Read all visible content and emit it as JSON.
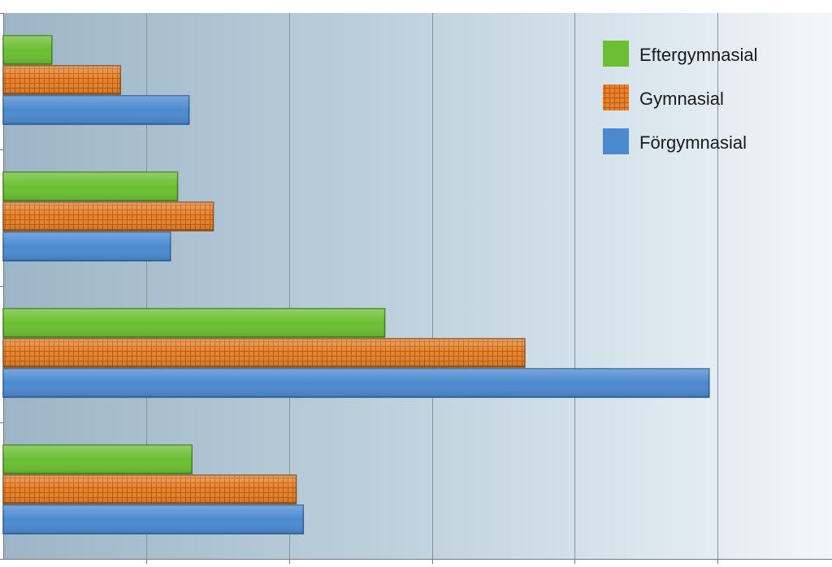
{
  "chart_data": {
    "type": "bar",
    "orientation": "horizontal",
    "title": "",
    "xlabel": "",
    "ylabel": "",
    "categories": [
      "",
      "",
      "",
      ""
    ],
    "series": [
      {
        "name": "Eftergymnasial",
        "color": "#6cbf33",
        "pattern": "solid",
        "values": [
          0.34,
          1.22,
          2.67,
          1.32
        ]
      },
      {
        "name": "Gymnasial",
        "color": "#e07b22",
        "pattern": "grid",
        "values": [
          0.82,
          1.47,
          3.65,
          2.05
        ]
      },
      {
        "name": "Förgymnasial",
        "color": "#4c8ad0",
        "pattern": "solid",
        "values": [
          1.3,
          1.17,
          4.94,
          2.1
        ]
      }
    ],
    "xlim": [
      0,
      5.8
    ],
    "x_grid_step": 1,
    "grid": true,
    "legend": {
      "position": "top-right",
      "order": [
        "Eftergymnasial",
        "Gymnasial",
        "Förgymnasial"
      ]
    },
    "background": "gradient-blue-to-white"
  }
}
